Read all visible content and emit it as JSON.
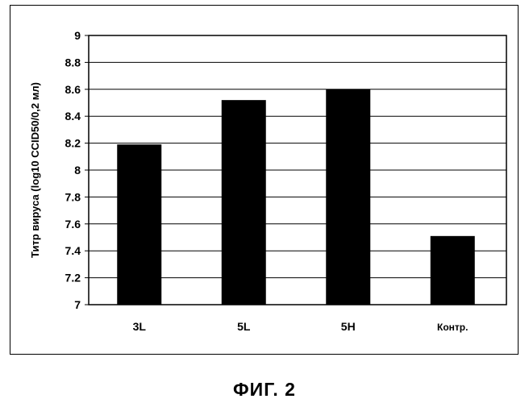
{
  "chart_data": {
    "type": "bar",
    "title": "",
    "xlabel": "",
    "ylabel": "Титр вируса (log10 CCID50/0,2 мл)",
    "categories": [
      "3L",
      "5L",
      "5H",
      "Контр."
    ],
    "values": [
      8.19,
      8.52,
      8.6,
      7.51
    ],
    "ylim": [
      7,
      9
    ],
    "yticks": [
      7,
      7.2,
      7.4,
      7.6,
      7.8,
      8,
      8.2,
      8.4,
      8.6,
      8.8,
      9
    ],
    "ytick_labels": [
      "7",
      "7.2",
      "7.4",
      "7.6",
      "7.8",
      "8",
      "8.2",
      "8.4",
      "8.6",
      "8.8",
      "9"
    ],
    "grid": "horizontal",
    "legend": "none",
    "bar_color": "#000000"
  },
  "caption": "ФИГ. 2"
}
